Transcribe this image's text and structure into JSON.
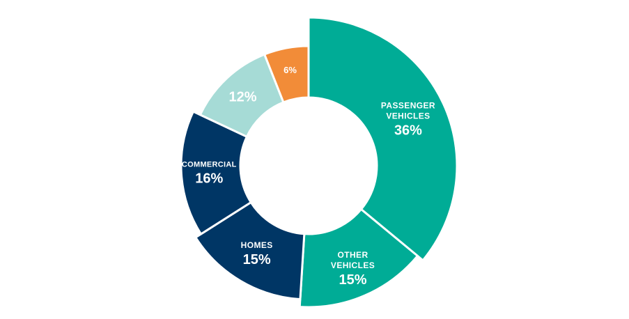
{
  "chart_data": {
    "type": "pie",
    "donut": true,
    "title": "",
    "slices": [
      {
        "label_lines": [
          "PASSENGER",
          "VEHICLES"
        ],
        "value": 36,
        "display": "36%",
        "color": "#00AC96"
      },
      {
        "label_lines": [
          "OTHER",
          "VEHICLES"
        ],
        "value": 15,
        "display": "15%",
        "color": "#00AC96"
      },
      {
        "label_lines": [
          "HOMES"
        ],
        "value": 15,
        "display": "15%",
        "color": "#003665"
      },
      {
        "label_lines": [
          "COMMERCIAL"
        ],
        "value": 16,
        "display": "16%",
        "color": "#003665"
      },
      {
        "label_lines": [],
        "value": 12,
        "display": "12%",
        "color": "#A6DBD6"
      },
      {
        "label_lines": [],
        "value": 6,
        "display": "6%",
        "color": "#F28C38"
      }
    ]
  }
}
